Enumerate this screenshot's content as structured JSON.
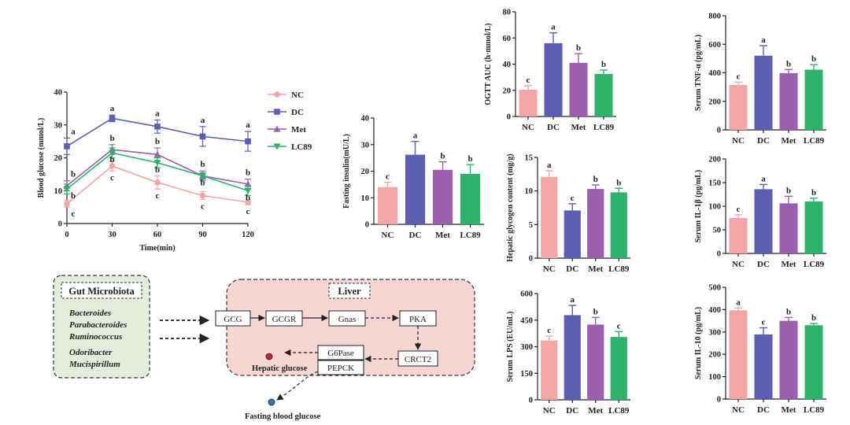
{
  "colors": {
    "NC": "#f4a6a6",
    "DC": "#5b5fb0",
    "Met": "#9b5fae",
    "LC89": "#2fb26b",
    "err": "#222"
  },
  "chart_data": [
    {
      "id": "glucose",
      "type": "line",
      "xlabel": "Time(min)",
      "ylabel": "Blood glucose (mmol/L)",
      "x": [
        0,
        30,
        60,
        90,
        120
      ],
      "xlim": [
        0,
        120
      ],
      "ylim": [
        0,
        40
      ],
      "yticks": [
        0,
        10,
        20,
        30,
        40
      ],
      "series": [
        {
          "name": "NC",
          "values": [
            6,
            17.5,
            12.5,
            8.5,
            6.5
          ],
          "err": [
            1,
            1.5,
            2,
            1.2,
            0.8
          ],
          "labels": [
            "c",
            "c",
            "c",
            "c",
            "c"
          ],
          "marker": "circle"
        },
        {
          "name": "DC",
          "values": [
            23.5,
            32,
            29.5,
            26.5,
            25
          ],
          "err": [
            2.5,
            1,
            2,
            3,
            3
          ],
          "labels": [
            "a",
            "a",
            "a",
            "a",
            "a"
          ],
          "marker": "square"
        },
        {
          "name": "Met",
          "values": [
            11.5,
            22.5,
            21,
            14.5,
            12
          ],
          "err": [
            1.5,
            1.5,
            2,
            1.5,
            1.5
          ],
          "labels": [
            "b",
            "b",
            "b",
            "b",
            "b"
          ],
          "marker": "triangle"
        },
        {
          "name": "LC89",
          "values": [
            10.5,
            21.5,
            18.5,
            14.5,
            10
          ],
          "err": [
            1.5,
            1.5,
            1.5,
            1,
            1.5
          ],
          "labels": [
            "b",
            "b",
            "b",
            "b",
            "b"
          ],
          "marker": "tri-down"
        }
      ]
    },
    {
      "id": "insulin",
      "type": "bar",
      "ylabel": "Fasting insulin(mU/L)",
      "categories": [
        "NC",
        "DC",
        "Met",
        "LC89"
      ],
      "values": [
        14,
        26.2,
        20.5,
        19
      ],
      "err": [
        1.8,
        5,
        3,
        3.5
      ],
      "labels": [
        "c",
        "a",
        "b",
        "b"
      ],
      "ylim": [
        0,
        40
      ],
      "yticks": [
        0,
        10,
        20,
        30,
        40
      ]
    },
    {
      "id": "ogtt",
      "type": "bar",
      "ylabel": "OGTT AUC (h·mmol/L)",
      "categories": [
        "NC",
        "DC",
        "Met",
        "LC89"
      ],
      "values": [
        20.5,
        56,
        41,
        32.5
      ],
      "err": [
        3,
        8,
        7,
        3
      ],
      "labels": [
        "c",
        "a",
        "b",
        "b"
      ],
      "ylim": [
        0,
        80
      ],
      "yticks": [
        0,
        20,
        40,
        60,
        80
      ]
    },
    {
      "id": "glycogen",
      "type": "bar",
      "ylabel": "Hepatic glycogen content (mg/g)",
      "categories": [
        "NC",
        "DC",
        "Met",
        "LC89"
      ],
      "values": [
        12.1,
        7.1,
        10.3,
        9.8
      ],
      "err": [
        0.9,
        1,
        0.6,
        0.6
      ],
      "labels": [
        "a",
        "c",
        "b",
        "b"
      ],
      "ylim": [
        0,
        15
      ],
      "yticks": [
        0,
        5,
        10,
        15
      ]
    },
    {
      "id": "lps",
      "type": "bar",
      "ylabel": "Serum LPS (EU/mL)",
      "categories": [
        "NC",
        "DC",
        "Met",
        "LC89"
      ],
      "values": [
        335,
        478,
        425,
        355
      ],
      "err": [
        25,
        55,
        40,
        30
      ],
      "labels": [
        "c",
        "a",
        "b",
        "c"
      ],
      "ylim": [
        0,
        600
      ],
      "yticks": [
        0,
        150,
        300,
        450,
        600
      ]
    },
    {
      "id": "tnf",
      "type": "bar",
      "ylabel": "Serum TNF-α (pg/mL)",
      "categories": [
        "NC",
        "DC",
        "Met",
        "LC89"
      ],
      "values": [
        315,
        520,
        398,
        422
      ],
      "err": [
        20,
        70,
        25,
        35
      ],
      "labels": [
        "c",
        "a",
        "b",
        "b"
      ],
      "ylim": [
        0,
        800
      ],
      "yticks": [
        0,
        200,
        400,
        600,
        800
      ]
    },
    {
      "id": "il1b",
      "type": "bar",
      "ylabel": "Serum IL-1β (pg/mL)",
      "categories": [
        "NC",
        "DC",
        "Met",
        "LC89"
      ],
      "values": [
        75,
        136,
        106,
        110
      ],
      "err": [
        7,
        10,
        15,
        7
      ],
      "labels": [
        "c",
        "a",
        "b",
        "b"
      ],
      "ylim": [
        0,
        200
      ],
      "yticks": [
        0,
        50,
        100,
        150,
        200
      ]
    },
    {
      "id": "il10",
      "type": "bar",
      "ylabel": "Serum IL-10 (pg/mL)",
      "categories": [
        "NC",
        "DC",
        "Met",
        "LC89"
      ],
      "values": [
        397,
        289,
        350,
        330
      ],
      "err": [
        10,
        30,
        15,
        8
      ],
      "labels": [
        "a",
        "c",
        "b",
        "b"
      ],
      "ylim": [
        0,
        500
      ],
      "yticks": [
        0,
        100,
        200,
        300,
        400,
        500
      ]
    }
  ],
  "diagram": {
    "gut_title": "Gut Microbiota",
    "gut_red": [
      "Bacteroides",
      "Parabacteroides",
      "Ruminococcus"
    ],
    "gut_blue": [
      "Odoribacter",
      "Mucispirillum"
    ],
    "liver_title": "Liver",
    "nodes": {
      "gcg": "GCG",
      "gcgr": "GCGR",
      "gnas": "Gnas",
      "pka": "PKA",
      "crct2": "CRCT2",
      "g6pase": "G6Pase",
      "pepck": "PEPCK"
    },
    "hepatic_glucose": "Hepatic glucose",
    "fasting_blood_glucose": "Fasting blood glucose",
    "red": "#c0282d",
    "blue": "#2a7bbf",
    "liver_fill": "#f5d6d3"
  }
}
